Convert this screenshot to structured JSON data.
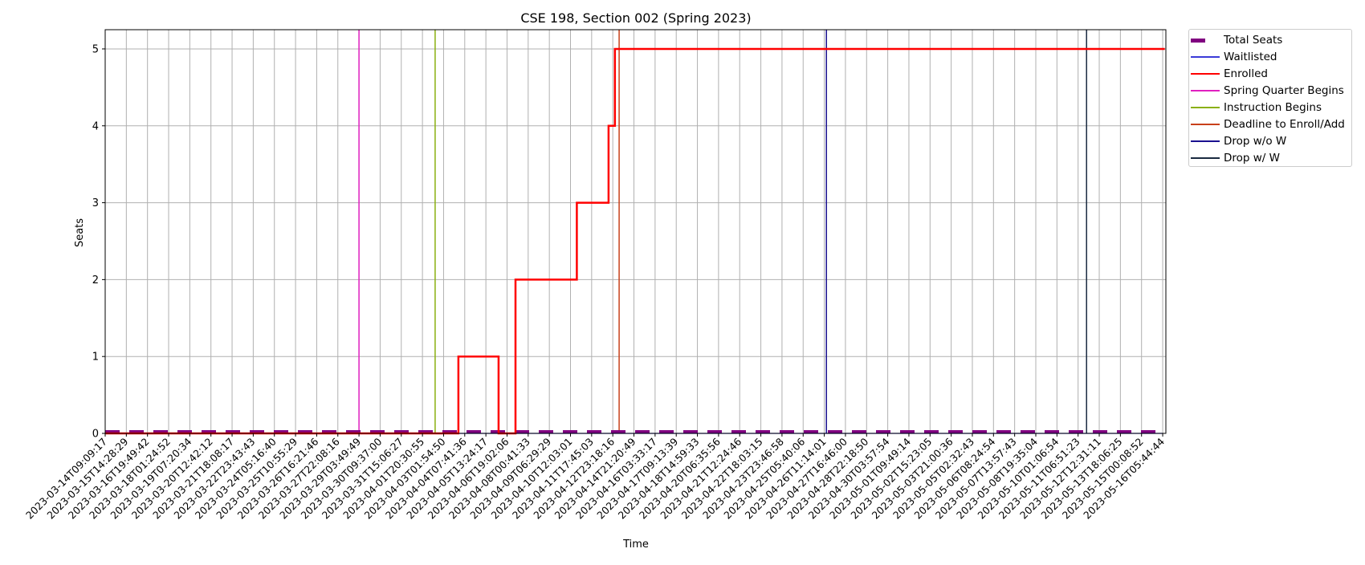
{
  "chart_data": {
    "type": "line",
    "title": "CSE 198, Section 002 (Spring 2023)",
    "xlabel": "Time",
    "ylabel": "Seats",
    "ylim": [
      0,
      5.25
    ],
    "yticks": [
      0,
      1,
      2,
      3,
      4,
      5
    ],
    "grid": true,
    "legend_position": "outside-top-right",
    "x_tick_labels": [
      "2023-03-14T09:09:17",
      "2023-03-15T14:28:29",
      "2023-03-16T19:49:42",
      "2023-03-18T01:24:52",
      "2023-03-19T07:20:34",
      "2023-03-20T12:42:12",
      "2023-03-21T18:08:17",
      "2023-03-22T23:43:43",
      "2023-03-24T05:16:40",
      "2023-03-25T10:55:29",
      "2023-03-26T16:21:46",
      "2023-03-27T22:08:16",
      "2023-03-29T03:49:49",
      "2023-03-30T09:37:00",
      "2023-03-31T15:06:27",
      "2023-04-01T20:30:55",
      "2023-04-03T01:54:50",
      "2023-04-04T07:41:36",
      "2023-04-05T13:24:17",
      "2023-04-06T19:02:06",
      "2023-04-08T00:41:33",
      "2023-04-09T06:29:29",
      "2023-04-10T12:03:01",
      "2023-04-11T17:45:03",
      "2023-04-12T23:18:16",
      "2023-04-14T21:20:49",
      "2023-04-16T03:33:17",
      "2023-04-17T09:13:39",
      "2023-04-18T14:59:33",
      "2023-04-20T06:35:56",
      "2023-04-21T12:24:46",
      "2023-04-22T18:03:15",
      "2023-04-23T23:46:58",
      "2023-04-25T05:40:06",
      "2023-04-26T11:14:01",
      "2023-04-27T16:46:00",
      "2023-04-28T22:18:50",
      "2023-04-30T03:57:54",
      "2023-05-01T09:49:14",
      "2023-05-02T15:23:05",
      "2023-05-03T21:00:36",
      "2023-05-05T02:32:43",
      "2023-05-06T08:24:54",
      "2023-05-07T13:57:43",
      "2023-05-08T19:35:04",
      "2023-05-10T01:06:54",
      "2023-05-11T06:51:23",
      "2023-05-12T12:31:11",
      "2023-05-13T18:06:25",
      "2023-05-15T00:08:52",
      "2023-05-16T05:44:44"
    ],
    "series": [
      {
        "name": "Total Seats",
        "color": "#800080",
        "style": "dashed-thick",
        "values": [
          0,
          0,
          0,
          0,
          0,
          0,
          0,
          0,
          0,
          0,
          0,
          0,
          0,
          0,
          0,
          0,
          0,
          0,
          0,
          0,
          0,
          0,
          0,
          0,
          0,
          0,
          0,
          0,
          0,
          0,
          0,
          0,
          0,
          0,
          0,
          0,
          0,
          0,
          0,
          0,
          0,
          0,
          0,
          0,
          0,
          0,
          0,
          0,
          0,
          0,
          0
        ]
      },
      {
        "name": "Waitlisted",
        "color": "#3a3ad8",
        "style": "solid-thin",
        "values": [
          0,
          0,
          0,
          0,
          0,
          0,
          0,
          0,
          0,
          0,
          0,
          0,
          0,
          0,
          0,
          0,
          0,
          0,
          0,
          0,
          0,
          0,
          0,
          0,
          0,
          0,
          0,
          0,
          0,
          0,
          0,
          0,
          0,
          0,
          0,
          0,
          0,
          0,
          0,
          0,
          0,
          0,
          0,
          0,
          0,
          0,
          0,
          0,
          0,
          0,
          0
        ]
      },
      {
        "name": "Enrolled",
        "color": "#ff0000",
        "style": "step",
        "steps": [
          [
            0,
            0
          ],
          [
            16.7,
            0
          ],
          [
            16.7,
            1
          ],
          [
            18.6,
            1
          ],
          [
            18.6,
            0
          ],
          [
            19.4,
            0
          ],
          [
            19.4,
            2
          ],
          [
            22.3,
            2
          ],
          [
            22.3,
            3
          ],
          [
            23.8,
            3
          ],
          [
            23.8,
            4
          ],
          [
            24.1,
            4
          ],
          [
            24.1,
            5
          ],
          [
            50.1,
            5
          ]
        ]
      }
    ],
    "events": [
      {
        "name": "Spring Quarter Begins",
        "color": "#e020c0",
        "x": 12.0
      },
      {
        "name": "Instruction Begins",
        "color": "#8ab010",
        "x": 15.6
      },
      {
        "name": "Deadline to Enroll/Add",
        "color": "#c8401a",
        "x": 24.3
      },
      {
        "name": "Drop w/o W",
        "color": "#1a1090",
        "x": 34.1
      },
      {
        "name": "Drop w/ W",
        "color": "#1a2a40",
        "x": 46.4
      }
    ]
  }
}
